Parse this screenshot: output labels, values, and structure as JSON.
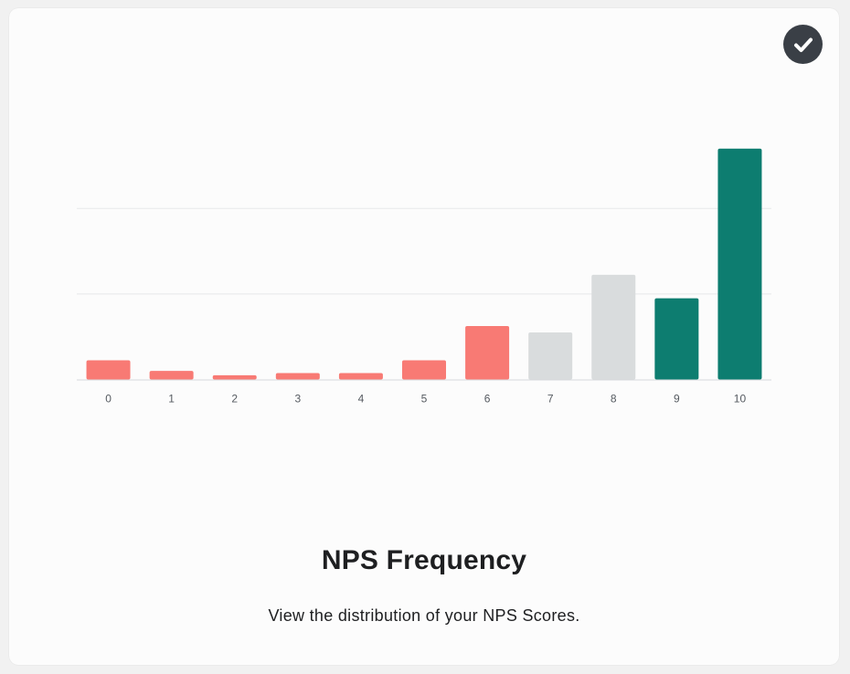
{
  "card": {
    "title": "NPS Frequency",
    "subtitle": "View the distribution of your NPS Scores.",
    "selected_icon": "checkmark-circle-icon"
  },
  "colors": {
    "detractor": "#f87a74",
    "passive": "#d9dcdd",
    "promoter": "#0d7d70",
    "gridline": "#e6e8ea",
    "badge": "#3a3f46"
  },
  "chart_data": {
    "type": "bar",
    "categories": [
      "0",
      "1",
      "2",
      "3",
      "4",
      "5",
      "6",
      "7",
      "8",
      "9",
      "10"
    ],
    "values": [
      4.5,
      2,
      1,
      1.5,
      1.5,
      4.5,
      12.5,
      11,
      24.5,
      19,
      54
    ],
    "groups": [
      "detractor",
      "detractor",
      "detractor",
      "detractor",
      "detractor",
      "detractor",
      "detractor",
      "passive",
      "passive",
      "promoter",
      "promoter"
    ],
    "ylim": [
      0,
      60
    ],
    "gridlines": [
      20,
      40
    ],
    "grid": true,
    "legend": "none"
  }
}
